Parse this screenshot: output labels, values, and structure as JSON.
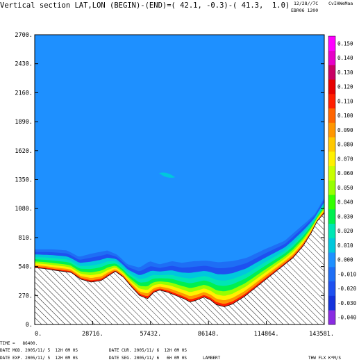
{
  "header": {
    "title": "Vertical section LAT,LON (BEGIN)-(END)=( 42.1, -0.3)-( 41.3,  1.0)",
    "date_code": "12/28//7C",
    "author": "CvIHWeMaa",
    "run_id": "EBR06 1200"
  },
  "footer": {
    "time_line": "TIME =   86400.",
    "date_mod": "DATE MOD. 2005/11/ 5  12H 0M 0S",
    "date_cur": "DATE CUR. 2005/11/ 6  12H 0M 0S",
    "date_exp": "DATE EXP. 2005/11/ 5  12H 0M 0S",
    "date_seg": "DATE SEG. 2005/11/ 6   6H 0M 0S",
    "projection": "LAMBERT",
    "field_label": "THW FLX K*M/S"
  },
  "chart_data": {
    "type": "heatmap",
    "title": "Vertical section LAT,LON (BEGIN)-(END)=( 42.1, -0.3)-( 41.3,  1.0)",
    "xlabel": "",
    "ylabel": "",
    "xlim": [
      0,
      143581
    ],
    "ylim": [
      0,
      2700
    ],
    "x_ticks": [
      "0.",
      "28716.",
      "57432.",
      "86148.",
      "114864.",
      "143581."
    ],
    "y_ticks": [
      "0.",
      "270.",
      "540.",
      "810.",
      "1080.",
      "1350.",
      "1620.",
      "1890.",
      "2160.",
      "2430.",
      "2700."
    ],
    "colorbar": {
      "levels": [
        "-0.040",
        "-0.030",
        "-0.020",
        "-0.010",
        "0.000",
        "0.010",
        "0.020",
        "0.030",
        "0.040",
        "0.050",
        "0.060",
        "0.070",
        "0.080",
        "0.090",
        "0.100",
        "0.110",
        "0.120",
        "0.130",
        "0.140",
        "0.150"
      ],
      "colors": [
        "#8a2be2",
        "#1432dc",
        "#1e50f0",
        "#1e6ef5",
        "#1e90ff",
        "#00c8dc",
        "#00e6b4",
        "#00f050",
        "#32ff00",
        "#96ff00",
        "#c8ff00",
        "#fff000",
        "#ffc800",
        "#ff9600",
        "#ff6400",
        "#ff1e00",
        "#e60000",
        "#c80064",
        "#e600c8",
        "#ff00ff"
      ]
    },
    "background_value_color": "#1e90ff",
    "terrain": [
      [
        0,
        530
      ],
      [
        5000,
        520
      ],
      [
        10000,
        505
      ],
      [
        18000,
        485
      ],
      [
        23000,
        420
      ],
      [
        28000,
        395
      ],
      [
        33000,
        410
      ],
      [
        37000,
        460
      ],
      [
        40000,
        495
      ],
      [
        44000,
        440
      ],
      [
        48000,
        350
      ],
      [
        52000,
        270
      ],
      [
        56000,
        240
      ],
      [
        59000,
        300
      ],
      [
        62000,
        320
      ],
      [
        66000,
        300
      ],
      [
        70000,
        270
      ],
      [
        74000,
        240
      ],
      [
        77000,
        210
      ],
      [
        80000,
        225
      ],
      [
        84000,
        255
      ],
      [
        87000,
        230
      ],
      [
        90000,
        185
      ],
      [
        94000,
        165
      ],
      [
        98000,
        190
      ],
      [
        104000,
        260
      ],
      [
        110000,
        350
      ],
      [
        116000,
        440
      ],
      [
        122000,
        530
      ],
      [
        128000,
        620
      ],
      [
        133000,
        730
      ],
      [
        137000,
        850
      ],
      [
        140000,
        960
      ],
      [
        143581,
        1040
      ]
    ],
    "shallow_top": [
      [
        0,
        700
      ],
      [
        9000,
        700
      ],
      [
        16000,
        690
      ],
      [
        22000,
        630
      ],
      [
        28000,
        660
      ],
      [
        36000,
        690
      ],
      [
        41000,
        650
      ],
      [
        46000,
        560
      ],
      [
        52000,
        530
      ],
      [
        57000,
        590
      ],
      [
        62000,
        560
      ],
      [
        68000,
        590
      ],
      [
        73000,
        575
      ],
      [
        79000,
        590
      ],
      [
        85000,
        595
      ],
      [
        91000,
        580
      ],
      [
        98000,
        590
      ],
      [
        105000,
        620
      ],
      [
        114000,
        700
      ],
      [
        124000,
        780
      ],
      [
        130000,
        880
      ],
      [
        135000,
        960
      ],
      [
        139000,
        1030
      ],
      [
        143581,
        1180
      ]
    ],
    "anomaly_blob": {
      "x": 65500,
      "y": 1385,
      "value": "0.010"
    }
  }
}
